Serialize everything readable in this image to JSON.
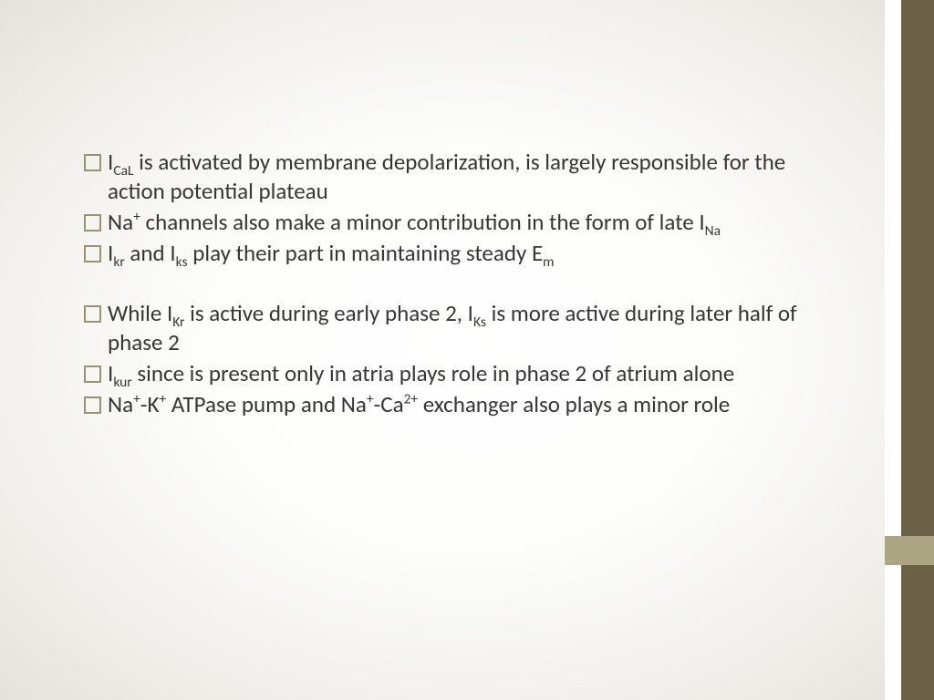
{
  "slide": {
    "background_gradient": [
      "#ffffff",
      "#fdfdfc",
      "#f0efeb",
      "#e4e2db"
    ],
    "sidebar_dark_color": "#6b6146",
    "sidebar_light_color": "#ffffff",
    "accent_block_color": "#aba584",
    "bullet_border_color": "#99936f",
    "text_color": "#363636",
    "font_size_pt": 19,
    "bullets": [
      {
        "segments": [
          {
            "t": "I",
            "style": "normal"
          },
          {
            "t": "CaL",
            "style": "sub"
          },
          {
            "t": " is activated by membrane depolarization, is largely responsible for the action potential plateau",
            "style": "normal"
          }
        ]
      },
      {
        "segments": [
          {
            "t": "Na",
            "style": "normal"
          },
          {
            "t": "+",
            "style": "sup"
          },
          {
            "t": " channels also make a minor contribution in the form of late I",
            "style": "normal"
          },
          {
            "t": "Na",
            "style": "sub"
          }
        ]
      },
      {
        "segments": [
          {
            "t": "I",
            "style": "normal"
          },
          {
            "t": "kr",
            "style": "sub"
          },
          {
            "t": " and I",
            "style": "normal"
          },
          {
            "t": "ks",
            "style": "sub"
          },
          {
            "t": " play their part in maintaining steady E",
            "style": "normal"
          },
          {
            "t": "m",
            "style": "sub"
          }
        ]
      },
      {
        "gap": true,
        "segments": [
          {
            "t": "While I",
            "style": "normal"
          },
          {
            "t": "Kr",
            "style": "sub"
          },
          {
            "t": " is active during early phase 2, I",
            "style": "normal"
          },
          {
            "t": "Ks",
            "style": "sub"
          },
          {
            "t": " is more active during later half of phase 2",
            "style": "normal"
          }
        ]
      },
      {
        "segments": [
          {
            "t": "I",
            "style": "normal"
          },
          {
            "t": "kur",
            "style": "sub"
          },
          {
            "t": " since is present only in atria plays role in phase 2 of atrium alone",
            "style": "normal"
          }
        ]
      },
      {
        "segments": [
          {
            "t": "Na",
            "style": "normal"
          },
          {
            "t": "+",
            "style": "sup"
          },
          {
            "t": "-K",
            "style": "normal"
          },
          {
            "t": "+",
            "style": "sup"
          },
          {
            "t": " ATPase pump and Na",
            "style": "normal"
          },
          {
            "t": "+",
            "style": "sup"
          },
          {
            "t": "-Ca",
            "style": "normal"
          },
          {
            "t": "2+",
            "style": "sup"
          },
          {
            "t": " exchanger also plays a minor role",
            "style": "normal"
          }
        ]
      }
    ]
  }
}
